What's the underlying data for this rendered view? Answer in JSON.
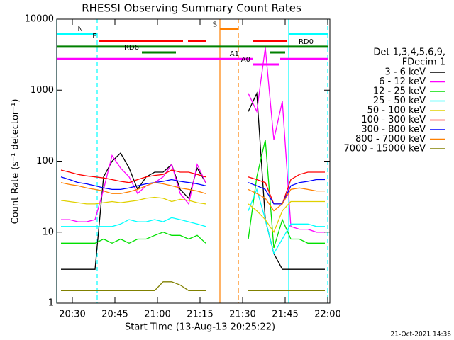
{
  "chart_data": {
    "type": "line",
    "title": "RHESSI Observing Summary Count Rates",
    "xlabel": "Start Time (13-Aug-13 20:25:22)",
    "ylabel": "Count Rate (s⁻¹ detector⁻¹)",
    "legend_header": [
      "Det 1,3,4,5,6,9,",
      "FDecim 1"
    ],
    "timestamp": "21-Oct-2021 14:36",
    "log_y": true,
    "xlim": [
      24.5,
      120.75
    ],
    "ylim": [
      1,
      10000
    ],
    "xticks": [
      {
        "value": 30,
        "label": "20:30"
      },
      {
        "value": 45,
        "label": "20:45"
      },
      {
        "value": 60,
        "label": "21:00"
      },
      {
        "value": 75,
        "label": "21:15"
      },
      {
        "value": 90,
        "label": "21:30"
      },
      {
        "value": 105,
        "label": "21:45"
      },
      {
        "value": 120,
        "label": "22:00"
      }
    ],
    "yticks": [
      1,
      10,
      100,
      1000,
      10000
    ],
    "x": [
      26,
      29,
      32,
      35,
      38,
      41,
      44,
      47,
      50,
      53,
      56,
      59,
      62,
      65,
      68,
      71,
      74,
      77,
      80,
      83,
      86,
      89,
      92,
      95,
      98,
      101,
      104,
      107,
      110,
      113,
      116,
      119
    ],
    "series": [
      {
        "name": "3 - 6 keV",
        "color": "#000000",
        "values": [
          3,
          3,
          3,
          3,
          3,
          60,
          100,
          130,
          80,
          40,
          60,
          70,
          70,
          90,
          40,
          30,
          80,
          50,
          null,
          null,
          null,
          null,
          500,
          900,
          15,
          5,
          3,
          3,
          3,
          3,
          3,
          3
        ]
      },
      {
        "name": "6 - 12 keV",
        "color": "#ff00ff",
        "values": [
          15,
          15,
          14,
          14,
          15,
          40,
          120,
          80,
          60,
          35,
          45,
          50,
          60,
          90,
          35,
          25,
          90,
          50,
          null,
          null,
          null,
          null,
          900,
          500,
          4000,
          200,
          700,
          12,
          11,
          11,
          10,
          10
        ]
      },
      {
        "name": "12 - 25 keV",
        "color": "#00e000",
        "values": [
          7,
          7,
          7,
          7,
          7,
          8,
          7,
          8,
          7,
          8,
          8,
          9,
          10,
          9,
          9,
          8,
          9,
          7,
          null,
          null,
          null,
          null,
          8,
          60,
          200,
          6,
          15,
          8,
          8,
          7,
          7,
          7
        ]
      },
      {
        "name": "25 - 50 keV",
        "color": "#00ffff",
        "values": [
          12,
          12,
          12,
          12,
          12,
          12,
          12,
          13,
          15,
          14,
          14,
          15,
          14,
          16,
          15,
          14,
          13,
          12,
          null,
          null,
          null,
          null,
          20,
          40,
          15,
          5,
          8,
          13,
          13,
          13,
          12,
          12
        ]
      },
      {
        "name": "50 - 100 keV",
        "color": "#e0d000",
        "values": [
          28,
          27,
          26,
          25,
          25,
          26,
          27,
          26,
          27,
          28,
          30,
          31,
          30,
          27,
          29,
          28,
          26,
          25,
          null,
          null,
          null,
          null,
          25,
          20,
          15,
          10,
          20,
          27,
          27,
          27,
          27,
          27
        ]
      },
      {
        "name": "100 - 300 keV",
        "color": "#ff0000",
        "values": [
          75,
          70,
          65,
          62,
          60,
          58,
          55,
          52,
          50,
          55,
          60,
          63,
          65,
          75,
          70,
          70,
          65,
          60,
          null,
          null,
          null,
          null,
          60,
          55,
          50,
          25,
          25,
          55,
          65,
          70,
          70,
          70
        ]
      },
      {
        "name": "300 - 800 keV",
        "color": "#0000ff",
        "values": [
          60,
          55,
          50,
          48,
          45,
          42,
          40,
          40,
          42,
          45,
          48,
          50,
          52,
          55,
          52,
          50,
          48,
          45,
          null,
          null,
          null,
          null,
          50,
          45,
          40,
          25,
          25,
          45,
          50,
          52,
          55,
          55
        ]
      },
      {
        "name": "800 - 7000 keV",
        "color": "#ff8000",
        "values": [
          50,
          47,
          45,
          42,
          40,
          38,
          35,
          35,
          37,
          40,
          45,
          50,
          48,
          45,
          42,
          40,
          38,
          35,
          null,
          null,
          null,
          null,
          40,
          35,
          30,
          20,
          25,
          40,
          42,
          40,
          38,
          38
        ]
      },
      {
        "name": "7000 - 15000 keV",
        "color": "#808000",
        "values": [
          1.5,
          1.5,
          1.5,
          1.5,
          1.5,
          1.5,
          1.5,
          1.5,
          1.5,
          1.5,
          1.5,
          1.5,
          2,
          2,
          1.8,
          1.5,
          1.5,
          1.5,
          null,
          null,
          null,
          null,
          1.5,
          1.5,
          1.5,
          1.5,
          1.5,
          1.5,
          1.5,
          1.5,
          1.5,
          1.5
        ]
      }
    ],
    "flags": [
      {
        "label": "N",
        "color": "#00ffff",
        "y": 6200,
        "segments": [
          [
            24.5,
            38.75
          ],
          [
            106.25,
            120
          ]
        ]
      },
      {
        "label": "F",
        "color": "#ff0000",
        "y": 4900,
        "segments": [
          [
            39.5,
            69
          ],
          [
            70.75,
            77
          ],
          [
            93.75,
            105.75
          ]
        ]
      },
      {
        "label": "RD0",
        "color": "#008000",
        "y": 4100,
        "segments": [
          [
            24.5,
            120
          ]
        ]
      },
      {
        "label": "RD6",
        "color": "#008000",
        "y": 3400,
        "segments": [
          [
            54.5,
            66.5
          ],
          [
            99.5,
            105
          ]
        ]
      },
      {
        "label": "S",
        "color": "#ff8000",
        "y": 7200,
        "segments": [
          [
            82,
            88.5
          ]
        ]
      },
      {
        "label": "A1",
        "color": "#ff00ff",
        "y": 2750,
        "segments": [
          [
            24.5,
            93.75
          ],
          [
            103.25,
            120
          ]
        ]
      },
      {
        "label": "A0",
        "color": "#ff00ff",
        "y": 2300,
        "segments": [
          [
            93.75,
            102.75
          ]
        ]
      }
    ],
    "events": [
      {
        "x": 24.5,
        "color": "#00ffff",
        "style": "solid"
      },
      {
        "x": 38.75,
        "color": "#00ffff",
        "style": "dashed"
      },
      {
        "x": 106.25,
        "color": "#00ffff",
        "style": "solid"
      },
      {
        "x": 120,
        "color": "#00ffff",
        "style": "dashed"
      },
      {
        "x": 82,
        "color": "#ff8000",
        "style": "solid"
      },
      {
        "x": 88.5,
        "color": "#ff8000",
        "style": "dashed"
      }
    ]
  }
}
